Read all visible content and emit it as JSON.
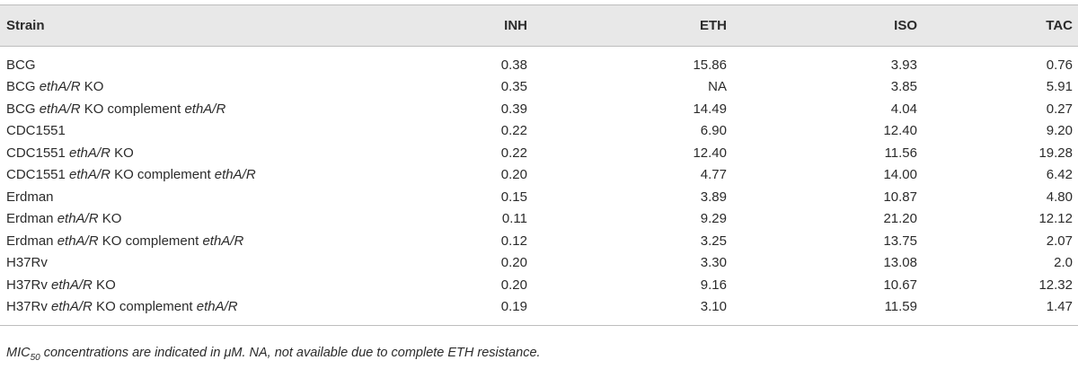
{
  "table": {
    "headers": {
      "strain": "Strain",
      "inh": "INH",
      "eth": "ETH",
      "iso": "ISO",
      "tac": "TAC"
    },
    "rows": [
      {
        "strain_pre": "BCG",
        "strain_gene": "",
        "strain_mid": "",
        "strain_gene2": "",
        "inh": "0.38",
        "eth": "15.86",
        "iso": "3.93",
        "tac": "0.76"
      },
      {
        "strain_pre": "BCG ",
        "strain_gene": "ethA/R",
        "strain_mid": " KO",
        "strain_gene2": "",
        "inh": "0.35",
        "eth": "NA",
        "iso": "3.85",
        "tac": "5.91"
      },
      {
        "strain_pre": "BCG ",
        "strain_gene": "ethA/R",
        "strain_mid": " KO complement ",
        "strain_gene2": "ethA/R",
        "inh": "0.39",
        "eth": "14.49",
        "iso": "4.04",
        "tac": "0.27"
      },
      {
        "strain_pre": "CDC1551",
        "strain_gene": "",
        "strain_mid": "",
        "strain_gene2": "",
        "inh": "0.22",
        "eth": "6.90",
        "iso": "12.40",
        "tac": "9.20"
      },
      {
        "strain_pre": "CDC1551 ",
        "strain_gene": "ethA/R",
        "strain_mid": " KO",
        "strain_gene2": "",
        "inh": "0.22",
        "eth": "12.40",
        "iso": "11.56",
        "tac": "19.28"
      },
      {
        "strain_pre": "CDC1551 ",
        "strain_gene": "ethA/R",
        "strain_mid": " KO complement ",
        "strain_gene2": "ethA/R",
        "inh": "0.20",
        "eth": "4.77",
        "iso": "14.00",
        "tac": "6.42"
      },
      {
        "strain_pre": "Erdman",
        "strain_gene": "",
        "strain_mid": "",
        "strain_gene2": "",
        "inh": "0.15",
        "eth": "3.89",
        "iso": "10.87",
        "tac": "4.80"
      },
      {
        "strain_pre": "Erdman ",
        "strain_gene": "ethA/R",
        "strain_mid": " KO",
        "strain_gene2": "",
        "inh": "0.11",
        "eth": "9.29",
        "iso": "21.20",
        "tac": "12.12"
      },
      {
        "strain_pre": "Erdman ",
        "strain_gene": "ethA/R",
        "strain_mid": " KO complement ",
        "strain_gene2": "ethA/R",
        "inh": "0.12",
        "eth": "3.25",
        "iso": "13.75",
        "tac": "2.07"
      },
      {
        "strain_pre": "H37Rv",
        "strain_gene": "",
        "strain_mid": "",
        "strain_gene2": "",
        "inh": "0.20",
        "eth": "3.30",
        "iso": "13.08",
        "tac": "2.0"
      },
      {
        "strain_pre": "H37Rv ",
        "strain_gene": "ethA/R",
        "strain_mid": " KO",
        "strain_gene2": "",
        "inh": "0.20",
        "eth": "9.16",
        "iso": "10.67",
        "tac": "12.32"
      },
      {
        "strain_pre": "H37Rv ",
        "strain_gene": "ethA/R",
        "strain_mid": " KO complement ",
        "strain_gene2": "ethA/R",
        "inh": "0.19",
        "eth": "3.10",
        "iso": "11.59",
        "tac": "1.47"
      }
    ]
  },
  "footnote": {
    "mic": "MIC",
    "sub": "50",
    "rest": " concentrations are indicated in μM. NA, not available due to complete ETH resistance."
  },
  "colors": {
    "header_bg": "#e8e8e8",
    "rule": "#bdbdbd",
    "text": "#2b2b2b"
  }
}
